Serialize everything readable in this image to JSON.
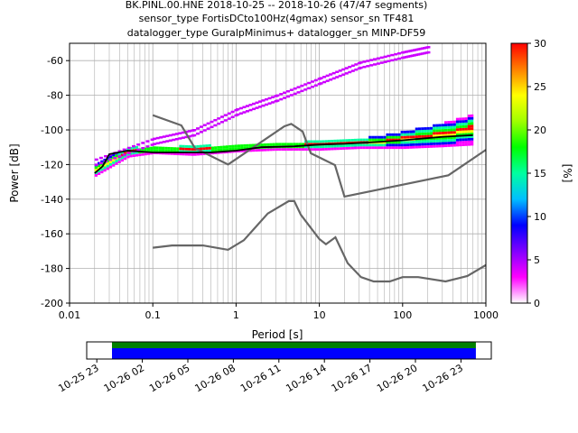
{
  "chart_data": [
    {
      "type": "heatmap",
      "title_lines": [
        "BK.PINL.00.HNE   2018-10-25 -- 2018-10-26  (47/47 segments)",
        "sensor_type FortisDCto100Hz(4gmax) sensor_sn TF481",
        "datalogger_type GuralpMinimus+ datalogger_sn MINP-DF59"
      ],
      "xlabel": "Period [s]",
      "ylabel": "Power [dB]",
      "xscale": "log",
      "xlim": [
        0.01,
        1000
      ],
      "ylim": [
        -200,
        -50
      ],
      "xtick_labels": [
        "0.01",
        "0.1",
        "1",
        "10",
        "100",
        "1000"
      ],
      "xtick_values": [
        0.01,
        0.1,
        1,
        10,
        100,
        1000
      ],
      "ytick_labels": [
        "-200",
        "-180",
        "-160",
        "-140",
        "-120",
        "-100",
        "-80",
        "-60"
      ],
      "ytick_values": [
        -200,
        -180,
        -160,
        -140,
        -120,
        -100,
        -80,
        -60
      ],
      "grid": true,
      "colorbar": {
        "label": "[%]",
        "range": [
          0,
          30
        ],
        "tick_labels": [
          "0",
          "5",
          "10",
          "15",
          "20",
          "25",
          "30"
        ],
        "tick_values": [
          0,
          5,
          10,
          15,
          20,
          25,
          30
        ],
        "colors": [
          "#ffffff",
          "#ff00ff",
          "#8000ff",
          "#0000ff",
          "#00bfff",
          "#00ffa0",
          "#00ff00",
          "#a0ff00",
          "#ffff00",
          "#ff8000",
          "#ff0000"
        ]
      },
      "model_curves": [
        {
          "role": "noise-model-high",
          "color": "#666666",
          "points": [
            [
              0.1,
              -91.5
            ],
            [
              0.22,
              -97.4
            ],
            [
              0.32,
              -110.5
            ],
            [
              0.8,
              -120
            ],
            [
              3.8,
              -97.9
            ],
            [
              4.6,
              -96.5
            ],
            [
              6.3,
              -101
            ],
            [
              7.9,
              -113.5
            ],
            [
              15.4,
              -120.3
            ],
            [
              20,
              -138.5
            ],
            [
              354.8,
              -126.2
            ],
            [
              1000,
              -111.5
            ]
          ]
        },
        {
          "role": "noise-model-low",
          "color": "#666666",
          "points": [
            [
              0.1,
              -168
            ],
            [
              0.17,
              -166.7
            ],
            [
              0.4,
              -166.7
            ],
            [
              0.8,
              -169.2
            ],
            [
              1.24,
              -163.7
            ],
            [
              2.4,
              -148.3
            ],
            [
              4.3,
              -141.1
            ],
            [
              5,
              -141.1
            ],
            [
              6,
              -149
            ],
            [
              10,
              -163
            ],
            [
              12,
              -166
            ],
            [
              15.6,
              -162
            ],
            [
              21.9,
              -177
            ],
            [
              31.6,
              -185
            ],
            [
              45,
              -187.5
            ],
            [
              70,
              -187.5
            ],
            [
              100,
              -185
            ],
            [
              154,
              -185
            ],
            [
              328,
              -187.5
            ],
            [
              600,
              -184.4
            ],
            [
              1000,
              -178
            ]
          ]
        }
      ],
      "mean_curve": {
        "color": "#000000",
        "points": [
          [
            0.02,
            -125
          ],
          [
            0.025,
            -121
          ],
          [
            0.03,
            -114
          ],
          [
            0.05,
            -112
          ],
          [
            0.1,
            -113
          ],
          [
            0.2,
            -113
          ],
          [
            0.5,
            -113
          ],
          [
            1,
            -112
          ],
          [
            2,
            -110
          ],
          [
            5,
            -109.5
          ],
          [
            10,
            -108.5
          ],
          [
            20,
            -108
          ],
          [
            50,
            -107
          ],
          [
            100,
            -106
          ],
          [
            300,
            -104
          ],
          [
            700,
            -103
          ]
        ]
      },
      "ppsd_density": [
        {
          "period": 0.02,
          "dominant_db": -123,
          "spread_db": 4
        },
        {
          "period": 0.05,
          "dominant_db": -113,
          "spread_db": 3
        },
        {
          "period": 0.1,
          "dominant_db": -112,
          "spread_db": 2
        },
        {
          "period": 0.3,
          "dominant_db": -112,
          "spread_db": 3
        },
        {
          "period": 1,
          "dominant_db": -111,
          "spread_db": 2
        },
        {
          "period": 3,
          "dominant_db": -110,
          "spread_db": 2
        },
        {
          "period": 10,
          "dominant_db": -109,
          "spread_db": 3
        },
        {
          "period": 30,
          "dominant_db": -108,
          "spread_db": 3
        },
        {
          "period": 100,
          "dominant_db": -106,
          "spread_db": 5
        },
        {
          "period": 300,
          "dominant_db": -103,
          "spread_db": 7
        },
        {
          "period": 700,
          "dominant_db": -100,
          "spread_db": 9
        }
      ],
      "sparse_upper_trace": {
        "color": "#cc00ff",
        "points": [
          [
            0.02,
            -117
          ],
          [
            0.1,
            -105
          ],
          [
            0.3,
            -100
          ],
          [
            1,
            -88
          ],
          [
            3,
            -80
          ],
          [
            10,
            -70
          ],
          [
            30,
            -61
          ],
          [
            100,
            -55
          ],
          [
            200,
            -52
          ]
        ]
      }
    },
    {
      "type": "timeline",
      "xtick_labels": [
        "10-25 23",
        "10-26 02",
        "10-26 05",
        "10-26 08",
        "10-26 11",
        "10-26 14",
        "10-26 17",
        "10-26 20",
        "10-26 23"
      ],
      "xtick_values": [
        "2018-10-25 23:00",
        "2018-10-26 02:00",
        "2018-10-26 05:00",
        "2018-10-26 08:00",
        "2018-10-26 11:00",
        "2018-10-26 14:00",
        "2018-10-26 17:00",
        "2018-10-26 20:00",
        "2018-10-26 23:00"
      ],
      "range": [
        "2018-10-25 22:20",
        "2018-10-27 01:00"
      ],
      "coverage": {
        "start": "2018-10-26 00:00",
        "end": "2018-10-26 23:59",
        "upper_color": "#008000",
        "lower_color": "#0000ff"
      }
    }
  ]
}
